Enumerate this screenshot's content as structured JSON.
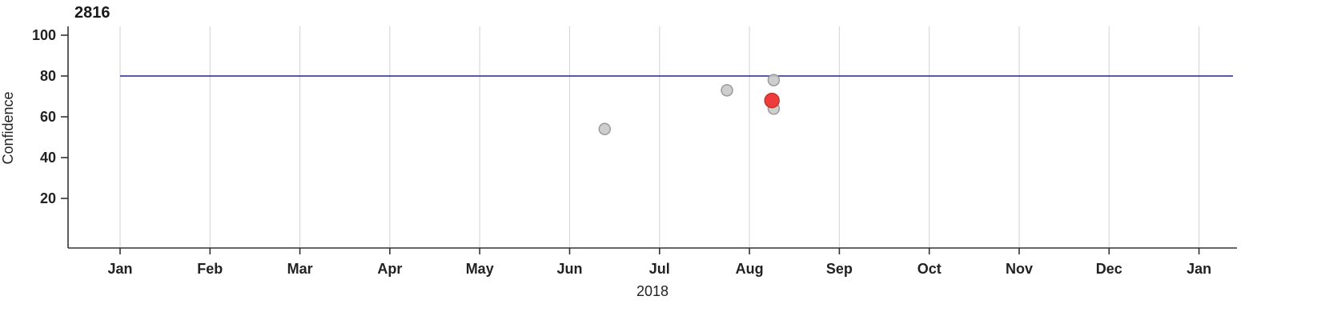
{
  "chart_data": {
    "type": "scatter",
    "title": "2816",
    "xlabel": "2018",
    "ylabel": "Confidence",
    "x_axis": {
      "tick_labels": [
        "Jan",
        "Feb",
        "Mar",
        "Apr",
        "May",
        "Jun",
        "Jul",
        "Aug",
        "Sep",
        "Oct",
        "Nov",
        "Dec",
        "Jan"
      ],
      "unit": "months_from_jan1_2018",
      "range_months": [
        0,
        12
      ]
    },
    "y_axis": {
      "ticks": [
        20,
        40,
        60,
        80,
        100
      ],
      "range": [
        0,
        105
      ]
    },
    "grid": "vertical-only",
    "legend": "none",
    "reference_line": {
      "y": 80,
      "color": "#23238e"
    },
    "points": [
      {
        "x_months_from_jan1": 5.39,
        "y": 54,
        "type": "normal"
      },
      {
        "x_months_from_jan1": 6.75,
        "y": 73,
        "type": "normal"
      },
      {
        "x_months_from_jan1": 7.27,
        "y": 78,
        "type": "normal"
      },
      {
        "x_months_from_jan1": 7.27,
        "y": 64,
        "type": "normal"
      },
      {
        "x_months_from_jan1": 7.25,
        "y": 68,
        "type": "highlight"
      }
    ],
    "colors": {
      "point_fill": "#c9c9c9",
      "point_stroke": "#9a9a9a",
      "highlight_fill": "#ee3b3c",
      "highlight_stroke": "#c0392b",
      "grid": "#d9d9d9",
      "axis": "#333333"
    }
  }
}
